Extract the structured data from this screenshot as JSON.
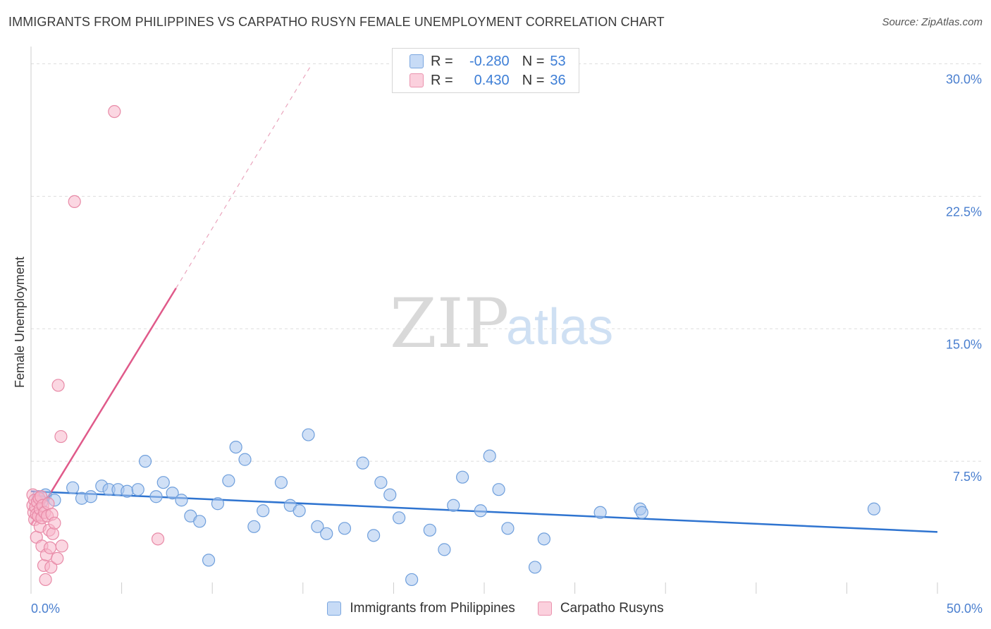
{
  "header": {
    "title": "IMMIGRANTS FROM PHILIPPINES VS CARPATHO RUSYN FEMALE UNEMPLOYMENT CORRELATION CHART",
    "source": "Source: ZipAtlas.com"
  },
  "watermark": {
    "zip": "ZIP",
    "atlas": "atlas"
  },
  "legend": {
    "rows": [
      {
        "r_label": "R =",
        "r_value": "-0.280",
        "n_label": "N =",
        "n_value": "53",
        "color": "#aac8f0"
      },
      {
        "r_label": "R =",
        "r_value": "0.430",
        "n_label": "N =",
        "n_value": "36",
        "color": "#f7b8cc"
      }
    ]
  },
  "colors": {
    "blue_fill": "#a9c7ee",
    "blue_stroke": "#6f9fdc",
    "blue_line": "#2f74d0",
    "pink_fill": "#f7b7ca",
    "pink_stroke": "#e88aa7",
    "pink_line": "#e05a8a",
    "tick_text": "#4a7fcf",
    "grid": "#dddddd"
  },
  "chart_data": {
    "type": "scatter",
    "title": "IMMIGRANTS FROM PHILIPPINES VS CARPATHO RUSYN FEMALE UNEMPLOYMENT CORRELATION CHART",
    "xlabel": "",
    "ylabel": "Female Unemployment",
    "xlim": [
      0,
      50
    ],
    "ylim": [
      0,
      30.5
    ],
    "x_tick_labels": {
      "left": "0.0%",
      "right": "50.0%"
    },
    "y_ticks": [
      {
        "value": 7.5,
        "label": "7.5%"
      },
      {
        "value": 15.0,
        "label": "15.0%"
      },
      {
        "value": 22.5,
        "label": "22.5%"
      },
      {
        "value": 30.0,
        "label": "30.0%"
      }
    ],
    "series": [
      {
        "name": "Immigrants from Philippines",
        "color": "#a9c7ee",
        "points": [
          [
            0.4,
            5.5
          ],
          [
            0.8,
            5.6
          ],
          [
            1.3,
            5.3
          ],
          [
            2.3,
            6.0
          ],
          [
            2.8,
            5.4
          ],
          [
            3.3,
            5.5
          ],
          [
            3.9,
            6.1
          ],
          [
            4.3,
            5.9
          ],
          [
            4.8,
            5.9
          ],
          [
            5.3,
            5.8
          ],
          [
            5.9,
            5.9
          ],
          [
            6.3,
            7.5
          ],
          [
            6.9,
            5.5
          ],
          [
            7.3,
            6.3
          ],
          [
            7.8,
            5.7
          ],
          [
            8.3,
            5.3
          ],
          [
            8.8,
            4.4
          ],
          [
            9.3,
            4.1
          ],
          [
            9.8,
            1.9
          ],
          [
            10.3,
            5.1
          ],
          [
            10.9,
            6.4
          ],
          [
            11.3,
            8.3
          ],
          [
            11.8,
            7.6
          ],
          [
            12.3,
            3.8
          ],
          [
            12.8,
            4.7
          ],
          [
            13.8,
            6.3
          ],
          [
            14.3,
            5.0
          ],
          [
            14.8,
            4.7
          ],
          [
            15.3,
            9.0
          ],
          [
            15.8,
            3.8
          ],
          [
            16.3,
            3.4
          ],
          [
            17.3,
            3.7
          ],
          [
            18.3,
            7.4
          ],
          [
            18.9,
            3.3
          ],
          [
            19.3,
            6.3
          ],
          [
            19.8,
            5.6
          ],
          [
            20.3,
            4.3
          ],
          [
            21.0,
            0.8
          ],
          [
            22.0,
            3.6
          ],
          [
            22.8,
            2.5
          ],
          [
            23.3,
            5.0
          ],
          [
            23.8,
            6.6
          ],
          [
            24.8,
            4.7
          ],
          [
            25.3,
            7.8
          ],
          [
            25.8,
            5.9
          ],
          [
            26.3,
            3.7
          ],
          [
            27.8,
            1.5
          ],
          [
            28.3,
            3.1
          ],
          [
            31.4,
            4.6
          ],
          [
            33.6,
            4.8
          ],
          [
            33.7,
            4.6
          ],
          [
            46.5,
            4.8
          ],
          [
            0.6,
            5.2
          ]
        ]
      },
      {
        "name": "Carpatho Rusyns",
        "color": "#f7b7ca",
        "points": [
          [
            0.1,
            5.6
          ],
          [
            0.1,
            5.0
          ],
          [
            0.15,
            4.6
          ],
          [
            0.2,
            5.3
          ],
          [
            0.2,
            4.2
          ],
          [
            0.25,
            4.9
          ],
          [
            0.3,
            3.2
          ],
          [
            0.3,
            4.5
          ],
          [
            0.35,
            5.2
          ],
          [
            0.4,
            4.4
          ],
          [
            0.45,
            5.4
          ],
          [
            0.5,
            4.8
          ],
          [
            0.5,
            3.8
          ],
          [
            0.55,
            5.5
          ],
          [
            0.6,
            4.3
          ],
          [
            0.6,
            2.7
          ],
          [
            0.65,
            5.0
          ],
          [
            0.7,
            1.6
          ],
          [
            0.75,
            4.6
          ],
          [
            0.8,
            0.8
          ],
          [
            0.85,
            2.2
          ],
          [
            0.9,
            4.4
          ],
          [
            0.95,
            5.1
          ],
          [
            1.0,
            3.6
          ],
          [
            1.05,
            2.6
          ],
          [
            1.1,
            1.5
          ],
          [
            1.15,
            4.5
          ],
          [
            1.2,
            3.4
          ],
          [
            1.3,
            4.0
          ],
          [
            1.45,
            2.0
          ],
          [
            1.5,
            11.8
          ],
          [
            1.65,
            8.9
          ],
          [
            1.7,
            2.7
          ],
          [
            2.4,
            22.2
          ],
          [
            4.6,
            27.3
          ],
          [
            7.0,
            3.1
          ]
        ]
      }
    ],
    "trend_lines": [
      {
        "series": "Immigrants from Philippines",
        "x": [
          0,
          50
        ],
        "y": [
          5.8,
          3.5
        ],
        "style": "solid"
      },
      {
        "series": "Carpatho Rusyns",
        "x": [
          0,
          8.0
        ],
        "y": [
          3.9,
          17.3
        ],
        "style": "solid",
        "extension": {
          "x": [
            8.0,
            15.5
          ],
          "y": [
            17.3,
            30.0
          ],
          "style": "dashed"
        }
      }
    ]
  },
  "bottom_legend": {
    "items": [
      {
        "label": "Immigrants from Philippines",
        "color": "#a9c7ee"
      },
      {
        "label": "Carpatho Rusyns",
        "color": "#f7b7ca"
      }
    ]
  }
}
